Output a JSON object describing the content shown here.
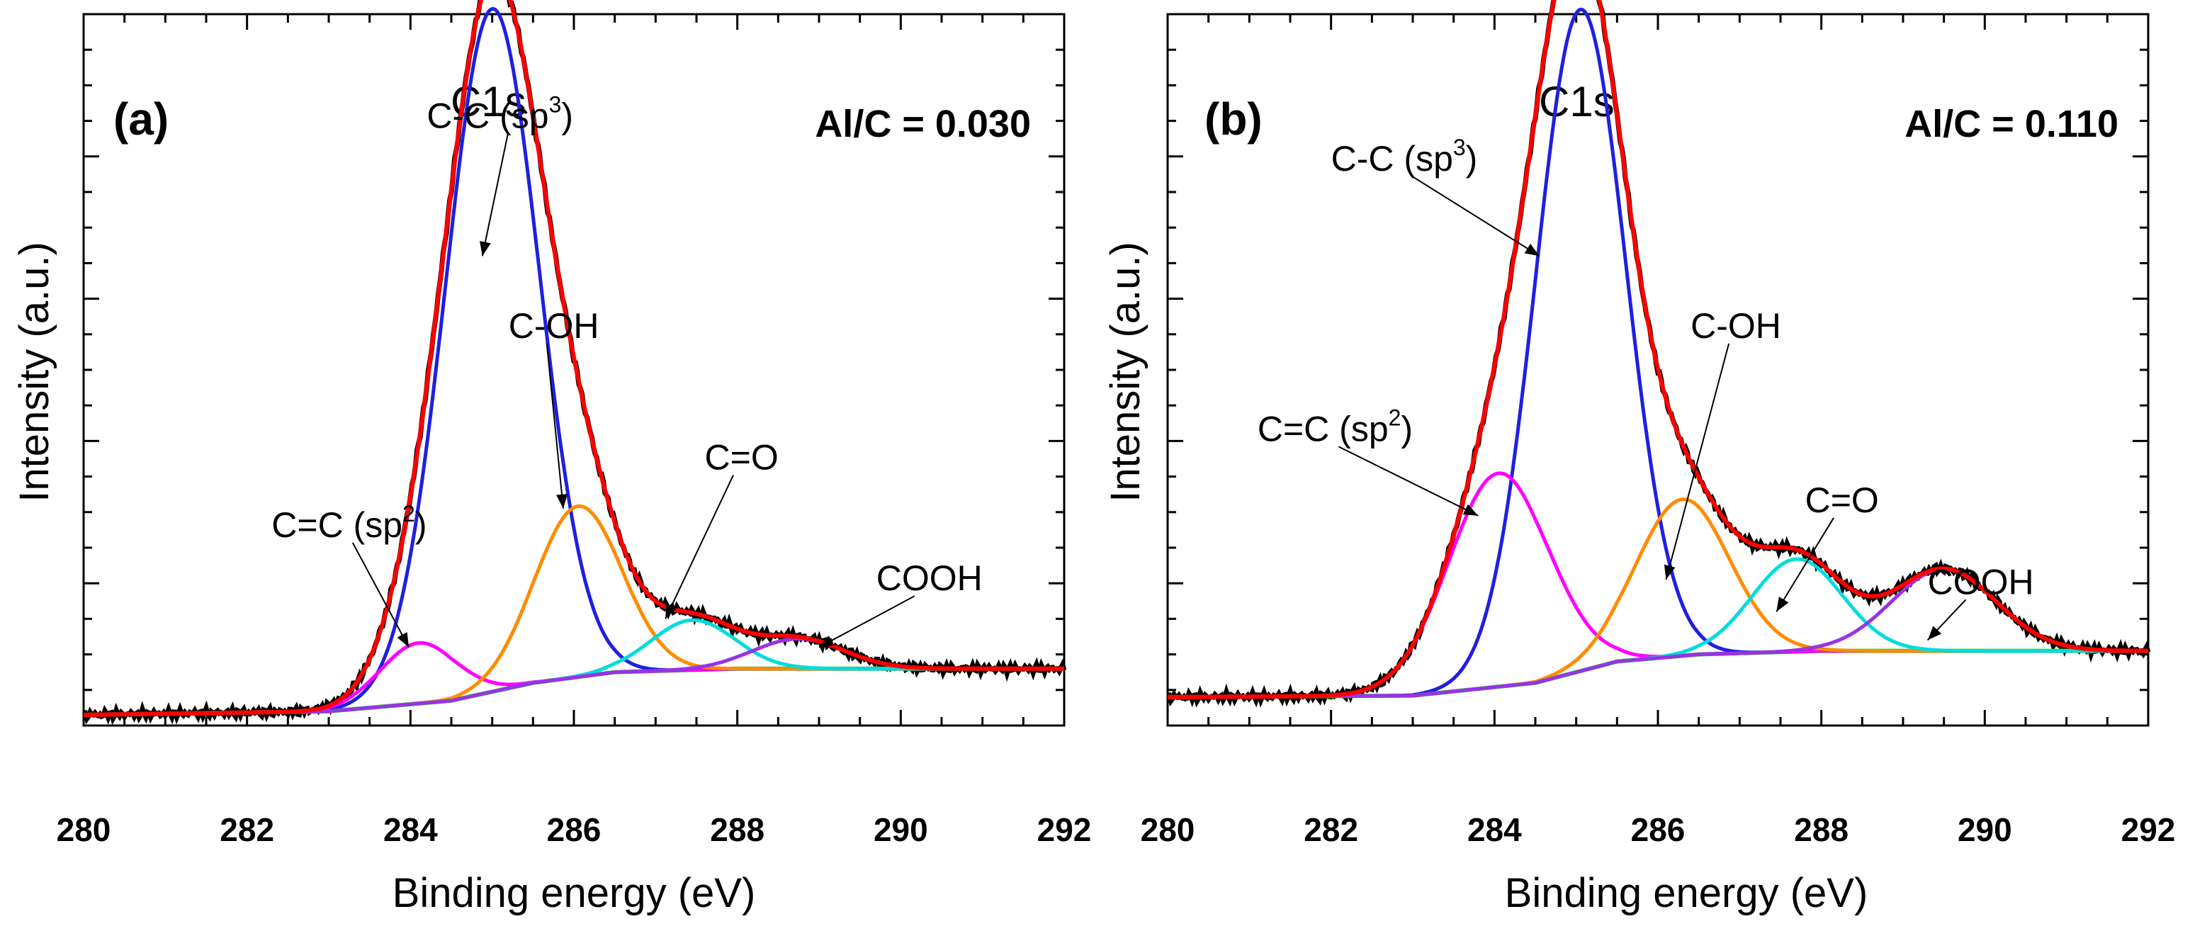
{
  "chart_data": [
    {
      "type": "line",
      "panel_label": "(a)",
      "peak_title": "C1s",
      "ratio_label": "Al/C = 0.030",
      "xlabel": "Binding energy (eV)",
      "ylabel": "Intensity (a.u.)",
      "xlim": [
        280,
        292
      ],
      "ylim": [
        0,
        100
      ],
      "xticks": [
        "280",
        "282",
        "284",
        "286",
        "288",
        "290",
        "292"
      ],
      "baseline": [
        [
          280,
          1.5
        ],
        [
          283,
          2.0
        ],
        [
          284.5,
          3.5
        ],
        [
          285.5,
          6.0
        ],
        [
          286.5,
          7.5
        ],
        [
          288,
          8.0
        ],
        [
          292,
          8.0
        ]
      ],
      "components": [
        {
          "name": "C-C (sp3)",
          "color": "#1f1fe0",
          "center": 285.0,
          "height": 96.0,
          "fwhm": 1.35
        },
        {
          "name": "C=C (sp2)",
          "color": "#ff00ff",
          "center": 284.1,
          "height": 8.5,
          "fwhm": 1.1
        },
        {
          "name": "C-OH",
          "color": "#ff8c00",
          "center": 286.05,
          "height": 24.0,
          "fwhm": 1.25
        },
        {
          "name": "C=O",
          "color": "#00dcdc",
          "center": 287.45,
          "height": 7.0,
          "fwhm": 1.2
        },
        {
          "name": "COOH",
          "color": "#9a32e6",
          "center": 288.75,
          "height": 4.2,
          "fwhm": 1.3
        }
      ],
      "envelope_color": "#ff0000",
      "raw_color": "#000000",
      "baseline_color": "#22dd22",
      "annotations": [
        {
          "text": "C-C (sp",
          "sup": "3",
          "close": ")",
          "x": 284.2,
          "y": 84,
          "tx": 284.88,
          "ty": 66
        },
        {
          "text": "C=C (sp",
          "sup": "2",
          "close": ")",
          "x": 282.3,
          "y": 26.5,
          "tx": 283.98,
          "ty": 11
        },
        {
          "text": "C-OH",
          "x": 285.2,
          "y": 54.5,
          "tx": 285.87,
          "ty": 30.5
        },
        {
          "text": "C=O",
          "x": 287.6,
          "y": 36,
          "tx": 287.12,
          "ty": 15
        },
        {
          "text": "COOH",
          "x": 289.7,
          "y": 19,
          "tx": 289.0,
          "ty": 11
        }
      ]
    },
    {
      "type": "line",
      "panel_label": "(b)",
      "peak_title": "C1s",
      "ratio_label": "Al/C = 0.110",
      "xlabel": "Binding energy (eV)",
      "ylabel": "Intensity (a.u.)",
      "xlim": [
        280,
        292
      ],
      "ylim": [
        0,
        100
      ],
      "xticks": [
        "280",
        "282",
        "284",
        "286",
        "288",
        "290",
        "292"
      ],
      "baseline": [
        [
          280,
          4.0
        ],
        [
          283,
          4.2
        ],
        [
          284.5,
          6.0
        ],
        [
          285.5,
          9.0
        ],
        [
          286.5,
          10.0
        ],
        [
          288,
          10.5
        ],
        [
          292,
          10.5
        ]
      ],
      "components": [
        {
          "name": "C-C (sp3)",
          "color": "#1f1fe0",
          "center": 285.05,
          "height": 93.0,
          "fwhm": 1.3
        },
        {
          "name": "C=C (sp2)",
          "color": "#ff00ff",
          "center": 284.05,
          "height": 30.0,
          "fwhm": 1.45
        },
        {
          "name": "C-OH",
          "color": "#ff8c00",
          "center": 286.3,
          "height": 22.0,
          "fwhm": 1.35
        },
        {
          "name": "C=O",
          "color": "#00dcdc",
          "center": 287.7,
          "height": 13.0,
          "fwhm": 1.3
        },
        {
          "name": "COOH",
          "color": "#9a32e6",
          "center": 289.5,
          "height": 11.5,
          "fwhm": 1.5
        }
      ],
      "envelope_color": "#ff0000",
      "raw_color": "#000000",
      "baseline_color": "#22dd22",
      "annotations": [
        {
          "text": "C-C (sp",
          "sup": "3",
          "close": ")",
          "x": 282.0,
          "y": 78,
          "tx": 284.55,
          "ty": 66
        },
        {
          "text": "C=C (sp",
          "sup": "2",
          "close": ")",
          "x": 281.1,
          "y": 40,
          "tx": 283.8,
          "ty": 29.5
        },
        {
          "text": "C-OH",
          "x": 286.4,
          "y": 54.5,
          "tx": 286.1,
          "ty": 20.5
        },
        {
          "text": "C=O",
          "x": 287.8,
          "y": 30,
          "tx": 287.45,
          "ty": 16
        },
        {
          "text": "COOH",
          "x": 289.3,
          "y": 18.5,
          "tx": 289.3,
          "ty": 12
        }
      ]
    }
  ]
}
